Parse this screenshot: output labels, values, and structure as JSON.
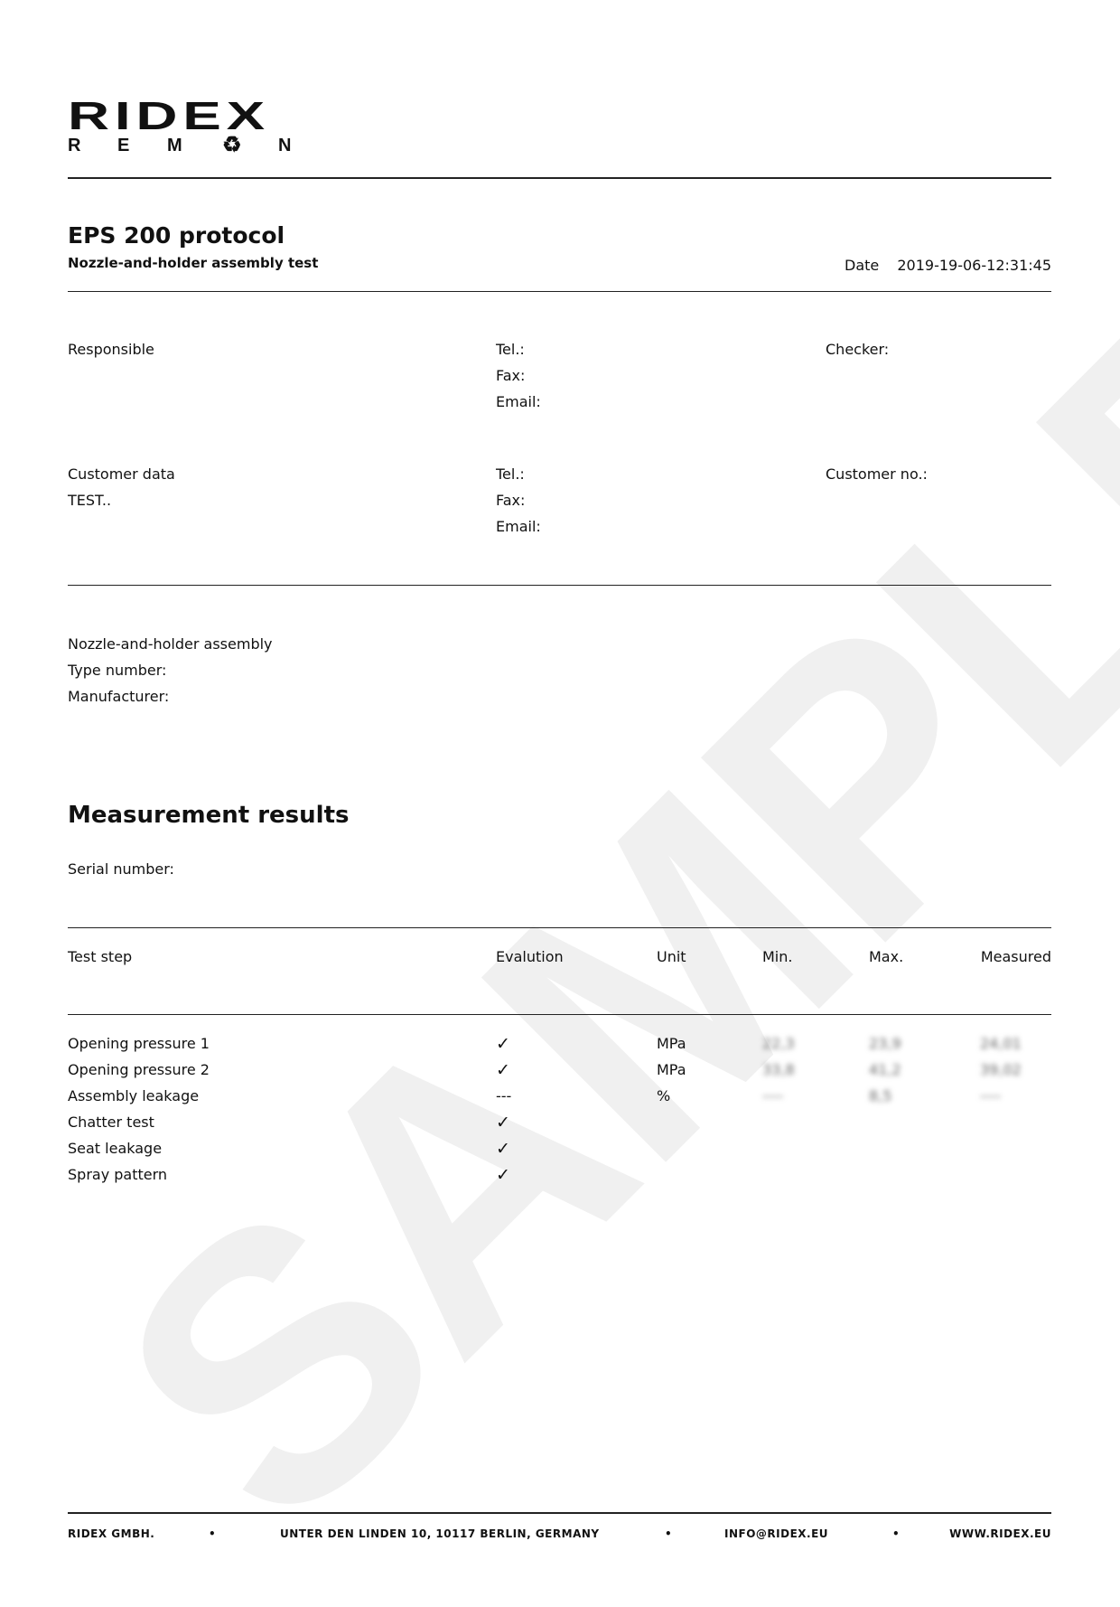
{
  "logo": {
    "brand": "RIDEX",
    "sub_letters": [
      "R",
      "E",
      "M",
      "♻",
      "N"
    ]
  },
  "header": {
    "title": "EPS 200 protocol",
    "subtitle": "Nozzle-and-holder assembly test",
    "date_label": "Date",
    "date_value": "2019-19-06-12:31:45"
  },
  "responsible": {
    "label": "Responsible",
    "tel": "Tel.:",
    "fax": "Fax:",
    "email": "Email:",
    "checker": "Checker:"
  },
  "customer": {
    "label": "Customer data",
    "value": "TEST..",
    "tel": "Tel.:",
    "fax": "Fax:",
    "email": "Email:",
    "customer_no": "Customer no.:"
  },
  "assembly": {
    "label": "Nozzle-and-holder assembly",
    "type_number": "Type number:",
    "manufacturer": "Manufacturer:"
  },
  "results": {
    "title": "Measurement results",
    "serial": "Serial number:",
    "columns": [
      "Test step",
      "Evalution",
      "Unit",
      "Min.",
      "Max.",
      "Measured"
    ],
    "rows": [
      {
        "step": "Opening pressure 1",
        "eval": "✓",
        "unit": "MPa",
        "min": "22,3",
        "max": "23,9",
        "measured": "24,01"
      },
      {
        "step": "Opening pressure 2",
        "eval": "✓",
        "unit": "MPa",
        "min": "33,8",
        "max": "41,2",
        "measured": "39,02"
      },
      {
        "step": "Assembly leakage",
        "eval": "---",
        "unit": "%",
        "min": "----",
        "max": "8,5",
        "measured": "----"
      },
      {
        "step": "Chatter test",
        "eval": "✓"
      },
      {
        "step": "Seat leakage",
        "eval": "✓"
      },
      {
        "step": "Spray pattern",
        "eval": "✓"
      }
    ]
  },
  "watermark": "SAMPLE",
  "footer": {
    "company": "RIDEX GMBH.",
    "address": "UNTER DEN LINDEN 10, 10117 BERLIN, GERMANY",
    "email": "INFO@RIDEX.EU",
    "web": "WWW.RIDEX.EU",
    "separator": "•"
  }
}
